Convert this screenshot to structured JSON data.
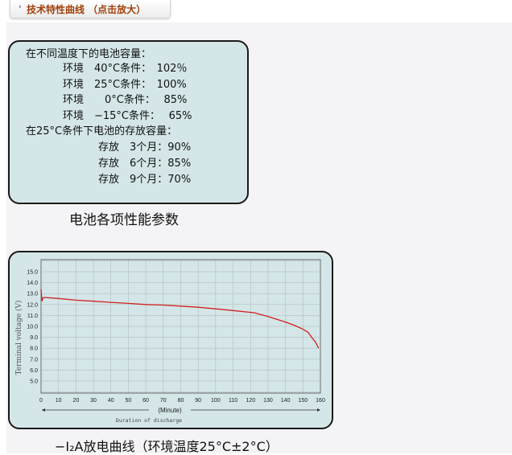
{
  "header": {
    "tab_label": "技术特性曲线 （点击放大）",
    "arrow_icon": "chevron-right-icon"
  },
  "specs": {
    "lines": [
      "在不同温度下的电池容量：",
      "环境　40°C条件：　102％",
      "环境　25°C条件：　100%",
      "环境　　0°C条件：　 85%",
      "环境　−15°C条件：　 65%",
      "在25°C条件下电池的存放容量：",
      "存放　3个月：90%",
      "存放　6个月：85%",
      "存放　9个月：70%"
    ],
    "caption": "电池各项性能参数"
  },
  "chart_data": {
    "type": "line",
    "ylabel": "Terminal voltage (V)",
    "xlabel": "(Minute)",
    "xlabel2": "Duration of discharge",
    "xlim": [
      0,
      160
    ],
    "ylim": [
      4,
      16
    ],
    "xticks": [
      0,
      10,
      20,
      30,
      40,
      50,
      60,
      70,
      80,
      90,
      100,
      110,
      120,
      130,
      140,
      150,
      160
    ],
    "yticks": [
      "15.0",
      "14.0",
      "13.0",
      "12.0",
      "11.0",
      "10.0",
      "9.0",
      "8.0",
      "7.0",
      "6.0",
      "5.0"
    ],
    "grid": true,
    "line_color": "#d02020",
    "x": [
      0,
      0.5,
      1,
      2,
      10,
      20,
      30,
      40,
      50,
      60,
      70,
      80,
      90,
      100,
      110,
      122,
      130,
      140,
      145,
      150,
      153,
      155,
      157,
      159
    ],
    "y": [
      13.4,
      12.3,
      12.6,
      12.65,
      12.55,
      12.4,
      12.3,
      12.2,
      12.1,
      12.0,
      11.95,
      11.85,
      11.75,
      11.6,
      11.45,
      11.25,
      10.9,
      10.4,
      10.1,
      9.75,
      9.45,
      9.0,
      8.6,
      8.0
    ],
    "caption": "−I₂A放电曲线（环境温度25°C±2°C）"
  }
}
